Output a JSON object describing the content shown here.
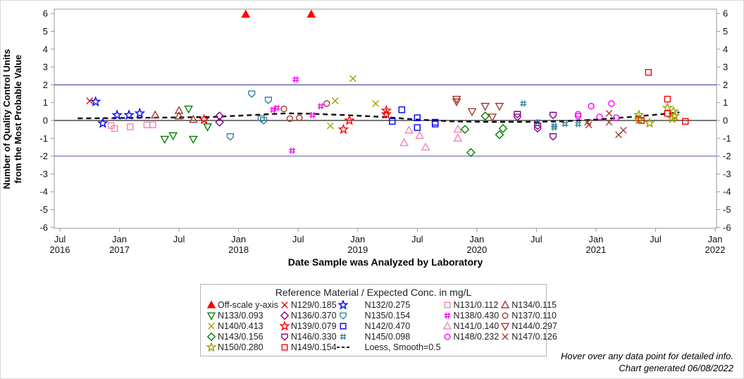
{
  "footnotes": {
    "line1": "Hover over any data point for detailed info.",
    "line2": "Chart generated 06/08/2022"
  },
  "chart_data": {
    "type": "scatter",
    "xlabel": "Date Sample was Analyzed by Laboratory",
    "ylabel_line1": "Number of Quality Control Units",
    "ylabel_line2": "from the Most Probable Value",
    "x_axis": {
      "min": 2016.5,
      "max": 2022.0,
      "ticks": [
        {
          "v": 2016.5,
          "l1": "Jul",
          "l2": "2016"
        },
        {
          "v": 2017.0,
          "l1": "Jan",
          "l2": "2017"
        },
        {
          "v": 2017.5,
          "l1": "Jul",
          "l2": ""
        },
        {
          "v": 2018.0,
          "l1": "Jan",
          "l2": "2018"
        },
        {
          "v": 2018.5,
          "l1": "Jul",
          "l2": ""
        },
        {
          "v": 2019.0,
          "l1": "Jan",
          "l2": "2019"
        },
        {
          "v": 2019.5,
          "l1": "Jul",
          "l2": ""
        },
        {
          "v": 2020.0,
          "l1": "Jan",
          "l2": "2020"
        },
        {
          "v": 2020.5,
          "l1": "Jul",
          "l2": ""
        },
        {
          "v": 2021.0,
          "l1": "Jan",
          "l2": "2021"
        },
        {
          "v": 2021.5,
          "l1": "Jul",
          "l2": ""
        },
        {
          "v": 2022.0,
          "l1": "Jan",
          "l2": "2022"
        }
      ]
    },
    "y_axis": {
      "min": -6,
      "max": 6,
      "ticks": [
        6,
        5,
        4,
        3,
        2,
        1,
        0,
        -1,
        -2,
        -3,
        -4,
        -5,
        -6
      ]
    },
    "ref_lines": [
      {
        "y": 2,
        "color": "#5959A8",
        "width": 1.4
      },
      {
        "y": 0,
        "color": "#4D4D4D",
        "width": 1.6
      },
      {
        "y": -2,
        "color": "#8080CC",
        "width": 1.4
      }
    ],
    "legend": {
      "title": "Reference Material / Expected Conc. in mg/L",
      "columns": [
        [
          "offscale",
          "N133",
          "N140",
          "N143",
          "N150"
        ],
        [
          "N129",
          "N136",
          "N139",
          "N146",
          "N149"
        ],
        [
          "N132",
          "N135",
          "N142",
          "N145",
          "loess"
        ],
        [
          "N131",
          "N138",
          "N141",
          "N148"
        ],
        [
          "N134",
          "N137",
          "N144",
          "N147"
        ]
      ]
    },
    "series": {
      "offscale": {
        "label": "Off-scale y-axis",
        "marker": "triangle-filled",
        "color": "#FF0000",
        "points": [
          [
            2018.06,
            5.95
          ],
          [
            2018.61,
            5.95
          ]
        ]
      },
      "N129": {
        "label": "N129/0.185",
        "marker": "x",
        "color": "#FF0000",
        "points": [
          [
            2016.75,
            1.1
          ]
        ]
      },
      "N132": {
        "label": "N132/0.275",
        "marker": "star",
        "color": "#0000FF",
        "points": [
          [
            2016.8,
            1.05
          ],
          [
            2016.86,
            -0.16
          ],
          [
            2016.98,
            0.3
          ],
          [
            2017.08,
            0.3
          ],
          [
            2017.17,
            0.4
          ]
        ]
      },
      "N131": {
        "label": "N131/0.112",
        "marker": "square",
        "color": "#F087B5",
        "points": [
          [
            2016.93,
            -0.28
          ],
          [
            2016.96,
            -0.45
          ],
          [
            2017.09,
            -0.36
          ],
          [
            2017.23,
            -0.25
          ],
          [
            2017.28,
            -0.25
          ]
        ]
      },
      "N134": {
        "label": "N134/0.115",
        "marker": "triangle",
        "color": "#A33B2E",
        "points": [
          [
            2017.3,
            0.3
          ],
          [
            2017.5,
            0.55
          ],
          [
            2017.5,
            0.25
          ],
          [
            2017.62,
            0.05
          ]
        ]
      },
      "N133": {
        "label": "N133/0.093",
        "marker": "triangle-down",
        "color": "#008000",
        "points": [
          [
            2017.38,
            -1.05
          ],
          [
            2017.45,
            -0.85
          ],
          [
            2017.58,
            0.65
          ],
          [
            2017.62,
            -1.05
          ],
          [
            2017.74,
            -0.35
          ]
        ]
      },
      "N139": {
        "label": "N139/0.079",
        "marker": "star",
        "color": "#FF0000",
        "points": [
          [
            2017.71,
            0.05
          ],
          [
            2018.88,
            -0.5
          ],
          [
            2018.93,
            0.0
          ],
          [
            2019.24,
            0.55
          ],
          [
            2019.24,
            0.35
          ]
        ]
      },
      "N136": {
        "label": "N136/0.370",
        "marker": "diamond",
        "color": "#8B008B",
        "points": [
          [
            2017.84,
            0.25
          ],
          [
            2017.84,
            -0.1
          ]
        ]
      },
      "N135": {
        "label": "N135/0.154",
        "marker": "pentagon-down",
        "color": "#36839E",
        "points": [
          [
            2017.93,
            -0.9
          ],
          [
            2018.11,
            1.5
          ],
          [
            2018.19,
            0.1
          ],
          [
            2018.21,
            0.0
          ],
          [
            2018.25,
            1.15
          ]
        ]
      },
      "N138": {
        "label": "N138/0.430",
        "marker": "hash",
        "color": "#FF00FF",
        "points": [
          [
            2018.29,
            0.6
          ],
          [
            2018.32,
            0.7
          ],
          [
            2018.45,
            -1.7
          ],
          [
            2018.48,
            2.3
          ],
          [
            2018.62,
            0.3
          ],
          [
            2018.69,
            0.8
          ]
        ]
      },
      "N137": {
        "label": "N137/0.110",
        "marker": "circle",
        "color": "#A33B2E",
        "points": [
          [
            2018.38,
            0.65
          ],
          [
            2018.43,
            0.1
          ],
          [
            2018.51,
            0.15
          ],
          [
            2018.74,
            0.95
          ]
        ]
      },
      "N140": {
        "label": "N140/0.413",
        "marker": "x",
        "color": "#A0A000",
        "points": [
          [
            2018.77,
            -0.3
          ],
          [
            2018.81,
            1.1
          ],
          [
            2018.96,
            2.35
          ],
          [
            2019.15,
            0.95
          ]
        ]
      },
      "N142": {
        "label": "N142/0.470",
        "marker": "square",
        "color": "#0000FF",
        "points": [
          [
            2019.29,
            -0.05
          ],
          [
            2019.37,
            0.6
          ],
          [
            2019.5,
            0.15
          ],
          [
            2019.5,
            -0.4
          ],
          [
            2019.65,
            -0.1
          ],
          [
            2019.65,
            -0.2
          ]
        ]
      },
      "N141": {
        "label": "N141/0.140",
        "marker": "triangle",
        "color": "#F087B5",
        "points": [
          [
            2019.39,
            -1.25
          ],
          [
            2019.43,
            -0.55
          ],
          [
            2019.52,
            -0.85
          ],
          [
            2019.57,
            -1.5
          ],
          [
            2019.84,
            -0.5
          ],
          [
            2019.84,
            -1.0
          ]
        ]
      },
      "N144": {
        "label": "N144/0.297",
        "marker": "triangle-down",
        "color": "#A33B2E",
        "points": [
          [
            2019.83,
            1.2
          ],
          [
            2019.83,
            1.05
          ],
          [
            2019.96,
            0.5
          ],
          [
            2020.07,
            0.8
          ],
          [
            2020.13,
            0.2
          ],
          [
            2020.19,
            0.8
          ]
        ]
      },
      "N143": {
        "label": "N143/0.156",
        "marker": "diamond",
        "color": "#008000",
        "points": [
          [
            2019.9,
            -0.5
          ],
          [
            2019.95,
            -1.8
          ],
          [
            2020.07,
            0.25
          ],
          [
            2020.19,
            -0.8
          ],
          [
            2020.22,
            -0.45
          ]
        ]
      },
      "N145": {
        "label": "N145/0.098",
        "marker": "hash",
        "color": "#36839E",
        "points": [
          [
            2020.39,
            0.95
          ],
          [
            2020.51,
            -0.1
          ],
          [
            2020.65,
            -0.3
          ],
          [
            2020.65,
            -0.4
          ],
          [
            2020.74,
            -0.2
          ],
          [
            2020.85,
            -0.2
          ]
        ]
      },
      "N146": {
        "label": "N146/0.330",
        "marker": "pentagon-down",
        "color": "#8B008B",
        "points": [
          [
            2020.34,
            0.35
          ],
          [
            2020.34,
            0.2
          ],
          [
            2020.51,
            -0.3
          ],
          [
            2020.51,
            -0.45
          ],
          [
            2020.64,
            0.3
          ],
          [
            2020.64,
            -0.9
          ]
        ]
      },
      "N148": {
        "label": "N148/0.232",
        "marker": "circle",
        "color": "#FF00FF",
        "points": [
          [
            2020.85,
            0.35
          ],
          [
            2020.85,
            0.25
          ],
          [
            2020.96,
            0.8
          ],
          [
            2021.03,
            0.2
          ],
          [
            2021.13,
            0.95
          ],
          [
            2021.17,
            0.15
          ]
        ]
      },
      "N147": {
        "label": "N147/0.126",
        "marker": "x",
        "color": "#A33B2E",
        "points": [
          [
            2020.93,
            -0.1
          ],
          [
            2020.94,
            -0.25
          ],
          [
            2021.11,
            0.4
          ],
          [
            2021.11,
            -0.1
          ],
          [
            2021.19,
            -0.8
          ],
          [
            2021.23,
            -0.55
          ]
        ]
      },
      "N150": {
        "label": "N150/0.280",
        "marker": "star",
        "color": "#A0A000",
        "points": [
          [
            2021.36,
            0.3
          ],
          [
            2021.36,
            0.05
          ],
          [
            2021.45,
            -0.15
          ],
          [
            2021.6,
            0.7
          ],
          [
            2021.64,
            0.1
          ],
          [
            2021.65,
            0.5
          ],
          [
            2021.66,
            0.25
          ]
        ]
      },
      "N149": {
        "label": "N149/0.154",
        "marker": "square",
        "color": "#FF0000",
        "points": [
          [
            2021.38,
            0.0
          ],
          [
            2021.44,
            2.7
          ],
          [
            2021.6,
            1.2
          ],
          [
            2021.6,
            0.4
          ],
          [
            2021.75,
            -0.05
          ]
        ]
      },
      "loess": {
        "label": "Loess, Smooth=0.5",
        "marker": "dash",
        "color": "#111111",
        "points": [
          [
            2016.65,
            0.12
          ],
          [
            2016.9,
            0.13
          ],
          [
            2017.2,
            0.15
          ],
          [
            2017.5,
            0.17
          ],
          [
            2017.8,
            0.2
          ],
          [
            2018.1,
            0.3
          ],
          [
            2018.4,
            0.4
          ],
          [
            2018.6,
            0.38
          ],
          [
            2018.9,
            0.3
          ],
          [
            2019.2,
            0.2
          ],
          [
            2019.5,
            0.05
          ],
          [
            2019.8,
            -0.05
          ],
          [
            2020.1,
            -0.08
          ],
          [
            2020.4,
            -0.08
          ],
          [
            2020.7,
            -0.05
          ],
          [
            2021.0,
            0.05
          ],
          [
            2021.3,
            0.2
          ],
          [
            2021.55,
            0.35
          ],
          [
            2021.7,
            0.45
          ]
        ]
      }
    }
  }
}
